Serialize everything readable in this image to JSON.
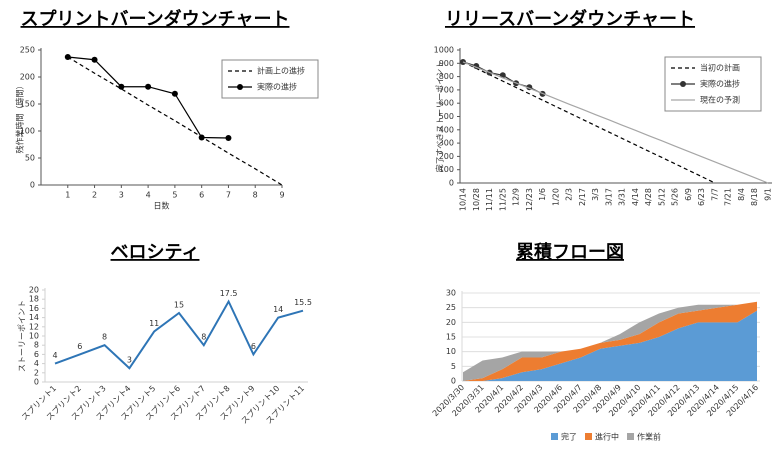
{
  "chart_data": [
    {
      "type": "line",
      "title": "スプリントバーンダウンチャート",
      "x_label": "日数",
      "y_label": "残作業時間（時間）",
      "x": [
        1,
        2,
        3,
        4,
        5,
        6,
        7,
        8,
        9
      ],
      "xlim": [
        0,
        9
      ],
      "xticks": [
        1,
        2,
        3,
        4,
        5,
        6,
        7,
        8,
        9
      ],
      "ylim": [
        0,
        250
      ],
      "yticks": [
        0,
        50,
        100,
        150,
        200,
        250
      ],
      "legend": "upper right",
      "series": [
        {
          "name": "計画上の進捗",
          "color": "#000000",
          "style": "dashed",
          "marker": "none",
          "values": [
            237,
            207,
            178,
            148,
            119,
            89,
            59,
            30,
            0
          ]
        },
        {
          "name": "実際の進捗",
          "color": "#000000",
          "style": "solid",
          "marker": "circle",
          "values": [
            237,
            232,
            182,
            182,
            169,
            88,
            87,
            null,
            null
          ]
        }
      ]
    },
    {
      "type": "line",
      "title": "リリースバーンダウンチャート",
      "y_label": "完了すべきストーリーポイント",
      "categories": [
        "10/14",
        "10/28",
        "11/11",
        "11/25",
        "12/9",
        "12/23",
        "1/6",
        "1/20",
        "2/3",
        "2/17",
        "3/3",
        "3/17",
        "3/31",
        "4/14",
        "4/28",
        "5/12",
        "5/26",
        "6/9",
        "6/23",
        "7/7",
        "7/21",
        "8/4",
        "8/18",
        "9/1"
      ],
      "ylim": [
        0,
        1000
      ],
      "yticks": [
        0,
        100,
        200,
        300,
        400,
        500,
        600,
        700,
        800,
        900,
        1000
      ],
      "legend": "upper right",
      "series": [
        {
          "name": "当初の計画",
          "color": "#000000",
          "style": "dashed",
          "marker": "none",
          "values": [
            910,
            862,
            814,
            766,
            718,
            671,
            623,
            575,
            527,
            479,
            431,
            383,
            335,
            287,
            239,
            192,
            144,
            96,
            48,
            0,
            null,
            null,
            null,
            null
          ]
        },
        {
          "name": "実際の進捗",
          "color": "#333333",
          "style": "solid",
          "marker": "circle",
          "values": [
            910,
            880,
            830,
            810,
            750,
            720,
            670,
            null,
            null,
            null,
            null,
            null,
            null,
            null,
            null,
            null,
            null,
            null,
            null,
            null,
            null,
            null,
            null,
            null
          ]
        },
        {
          "name": "現在の予測",
          "color": "#a6a6a6",
          "style": "solid",
          "marker": "none",
          "values": [
            910,
            870,
            831,
            791,
            752,
            712,
            673,
            633,
            593,
            554,
            514,
            475,
            435,
            396,
            356,
            317,
            277,
            237,
            198,
            158,
            119,
            79,
            40,
            0
          ]
        }
      ]
    },
    {
      "type": "line",
      "title": "ベロシティ",
      "y_label": "ストーリーポイント",
      "categories": [
        "スプリント1",
        "スプリント2",
        "スプリント3",
        "スプリント4",
        "スプリント5",
        "スプリント6",
        "スプリント7",
        "スプリント8",
        "スプリント9",
        "スプリント10",
        "スプリント11"
      ],
      "ylim": [
        0,
        20
      ],
      "yticks": [
        0,
        2,
        4,
        6,
        8,
        10,
        12,
        14,
        16,
        18,
        20
      ],
      "color": "#2e75b6",
      "data_labels": true,
      "values": [
        4,
        6,
        8,
        3,
        11,
        15,
        8,
        17.5,
        6,
        14,
        15.5
      ]
    },
    {
      "type": "area",
      "title": "累積フロー図",
      "stacked": true,
      "grid": true,
      "legend": "bottom",
      "categories": [
        "2020/3/30",
        "2020/3/31",
        "2020/4/1",
        "2020/4/2",
        "2020/4/3",
        "2020/4/6",
        "2020/4/7",
        "2020/4/8",
        "2020/4/9",
        "2020/4/10",
        "2020/4/11",
        "2020/4/12",
        "2020/4/13",
        "2020/4/14",
        "2020/4/15",
        "2020/4/16"
      ],
      "ylim": [
        0,
        30
      ],
      "yticks": [
        0,
        5,
        10,
        15,
        20,
        25,
        30
      ],
      "series": [
        {
          "name": "完了",
          "color": "#5b9bd5",
          "values": [
            0,
            0,
            1,
            3,
            4,
            6,
            8,
            11,
            12,
            13,
            15,
            18,
            20,
            20,
            20,
            24
          ]
        },
        {
          "name": "進行中",
          "color": "#ed7d31",
          "values": [
            0,
            1,
            3,
            5,
            4,
            4,
            3,
            2,
            2,
            3,
            5,
            5,
            4,
            5,
            6,
            3
          ]
        },
        {
          "name": "作業前",
          "color": "#a5a5a5",
          "values": [
            3,
            6,
            4,
            2,
            2,
            0,
            0,
            0,
            2,
            4,
            3,
            2,
            2,
            1,
            0,
            0
          ]
        }
      ]
    }
  ]
}
